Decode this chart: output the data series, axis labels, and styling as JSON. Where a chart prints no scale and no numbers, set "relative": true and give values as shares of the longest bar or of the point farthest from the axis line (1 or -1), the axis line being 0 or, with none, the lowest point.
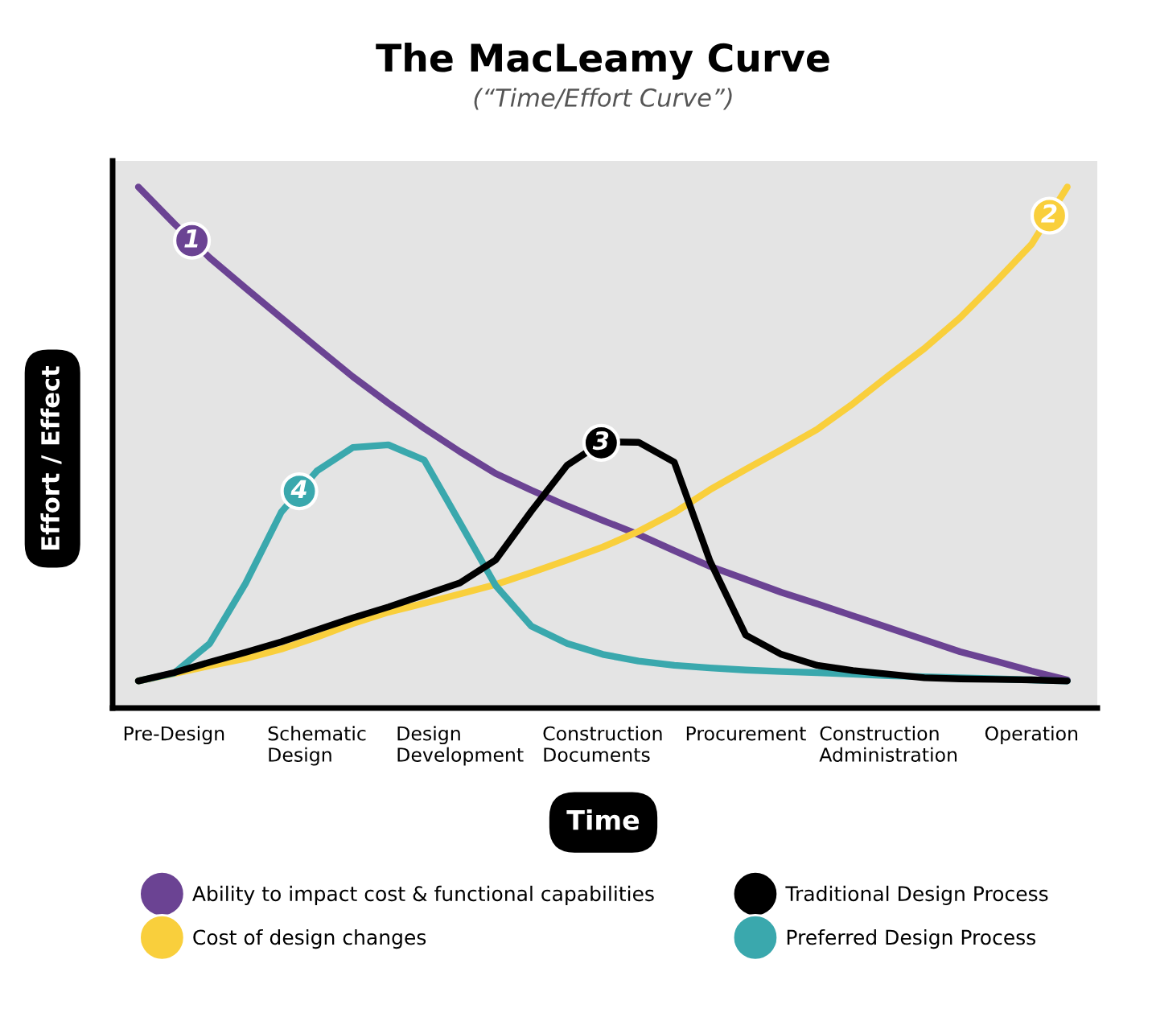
{
  "chart_data": {
    "type": "line",
    "title": "The MacLeamy Curve",
    "subtitle": "(“Time/Effort Curve”)",
    "xlabel": "Time",
    "ylabel": "Effort / Effect",
    "relative": true,
    "categories": [
      null,
      "Pre-Design",
      null,
      null,
      null,
      "Schematic Design",
      null,
      null,
      null,
      "Design Development",
      null,
      null,
      null,
      "Construction Documents",
      null,
      null,
      null,
      "Procurement",
      null,
      null,
      null,
      "Construction Administration",
      null,
      null,
      null,
      "Operation",
      null
    ],
    "series": [
      {
        "name": "Ability to impact cost & functional capabilities",
        "color": "#6b4393",
        "values": [
          1.0,
          0.93,
          0.864,
          0.806,
          0.749,
          0.692,
          0.636,
          0.585,
          0.537,
          0.492,
          0.45,
          0.418,
          0.388,
          0.36,
          0.333,
          0.302,
          0.272,
          0.247,
          0.222,
          0.2,
          0.177,
          0.154,
          0.131,
          0.108,
          0.09,
          0.071,
          0.054
        ]
      },
      {
        "name": "Cost of design changes",
        "color": "#f9cf3c",
        "values": [
          0.052,
          0.066,
          0.081,
          0.095,
          0.113,
          0.136,
          0.162,
          0.184,
          0.201,
          0.219,
          0.237,
          0.26,
          0.284,
          0.309,
          0.339,
          0.375,
          0.419,
          0.458,
          0.496,
          0.535,
          0.584,
          0.638,
          0.69,
          0.749,
          0.818,
          0.89,
          1.0
        ]
      },
      {
        "name": "Traditional Design Process",
        "color": "#000000",
        "values": [
          0.052,
          0.068,
          0.088,
          0.107,
          0.127,
          0.15,
          0.173,
          0.194,
          0.217,
          0.24,
          0.284,
          0.378,
          0.466,
          0.511,
          0.51,
          0.472,
          0.282,
          0.14,
          0.103,
          0.082,
          0.072,
          0.065,
          0.058,
          0.056,
          0.055,
          0.054,
          0.052
        ]
      },
      {
        "name": "Preferred Design Process",
        "color": "#3aa8ad",
        "values": [
          0.052,
          0.067,
          0.124,
          0.239,
          0.376,
          0.455,
          0.5,
          0.505,
          0.476,
          0.356,
          0.235,
          0.157,
          0.124,
          0.103,
          0.09,
          0.082,
          0.077,
          0.073,
          0.07,
          0.068,
          0.065,
          0.062,
          0.06,
          0.058,
          0.056,
          0.054,
          0.052
        ]
      }
    ],
    "annotations": [
      {
        "text": "1",
        "y": 0.897
      },
      {
        "text": "2",
        "y": 0.945
      },
      {
        "text": "3",
        "y": 0.509
      },
      {
        "text": "4",
        "y": 0.416
      }
    ],
    "legend": "bottom",
    "grid": false,
    "marker": "none",
    "line_style": "solid"
  }
}
